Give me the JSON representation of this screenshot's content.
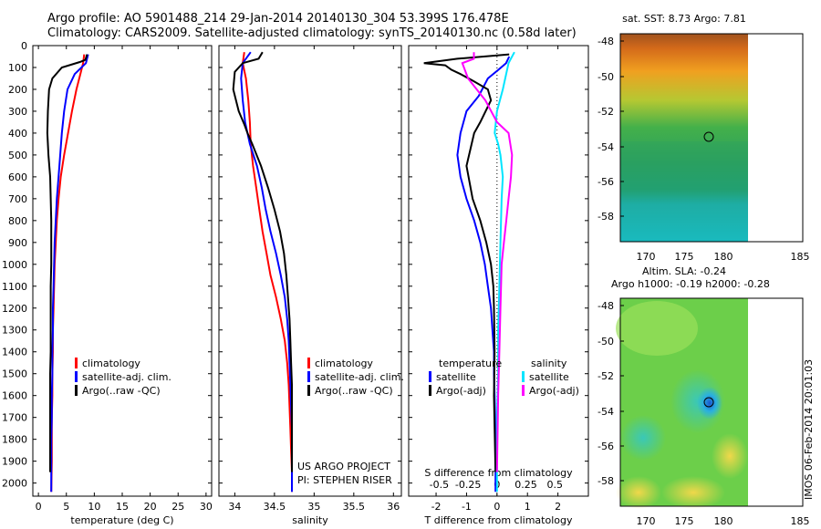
{
  "title_line1": "Argo profile: AO 5901488_214 29-Jan-2014 20140130_304 53.399S 176.478E",
  "title_line2": "Climatology: CARS2009. Satellite-adjusted climatology: synTS_20140130.nc (0.58d later)",
  "colors": {
    "climatology": "#ff0000",
    "satellite": "#0000ff",
    "argo": "#000000",
    "satellite_s": "#00e5ff",
    "argo_s": "#ff00ff"
  },
  "depth_axis": {
    "ticks": [
      "0",
      "100",
      "200",
      "300",
      "400",
      "500",
      "600",
      "700",
      "800",
      "900",
      "1000",
      "1100",
      "1200",
      "1300",
      "1400",
      "1500",
      "1600",
      "1700",
      "1800",
      "1900",
      "2000"
    ],
    "range": [
      0,
      2060
    ]
  },
  "panels": {
    "temperature": {
      "xlabel": "temperature (deg C)",
      "xticks": [
        "0",
        "5",
        "10",
        "15",
        "20",
        "25",
        "30"
      ],
      "legend": [
        "climatology",
        "satellite-adj. clim.",
        "Argo(..raw -QC)"
      ]
    },
    "salinity": {
      "xlabel": "salinity",
      "xticks": [
        "34",
        "34.5",
        "35",
        "35.5",
        "36"
      ],
      "legend": [
        "climatology",
        "satellite-adj. clim.",
        "Argo(..raw -QC)"
      ],
      "project_line1": "US ARGO PROJECT",
      "project_line2": "PI: STEPHEN RISER"
    },
    "difference": {
      "xlabel": "T difference from climatology",
      "top_label": "S difference from climatology",
      "top_ticks": [
        "-0.5",
        "-0.25",
        "0",
        "0.25",
        "0.5"
      ],
      "xticks": [
        "-2",
        "-1",
        "0",
        "1",
        "2"
      ],
      "legend_t_title": "temperature",
      "legend_s_title": "salinity",
      "legend_t": [
        "satellite",
        "Argo(-adj)"
      ],
      "legend_s": [
        "satellite",
        "Argo(-adj)"
      ]
    }
  },
  "maps": {
    "sst": {
      "title": "sat. SST: 8.73 Argo: 7.81",
      "xticks": [
        "170",
        "175",
        "180",
        "185"
      ],
      "yticks": [
        "-48",
        "-50",
        "-52",
        "-54",
        "-56",
        "-58"
      ]
    },
    "sla": {
      "title1": "Altim. SLA: -0.24",
      "title2": "Argo h1000: -0.19 h2000: -0.28",
      "xticks": [
        "170",
        "175",
        "180",
        "185"
      ],
      "yticks": [
        "-48",
        "-50",
        "-52",
        "-54",
        "-56",
        "-58"
      ]
    }
  },
  "stamp": "IMOS 06-Feb-2014 20:01:03",
  "chart_data": [
    {
      "type": "line",
      "name": "temperature",
      "xlim": [
        -1,
        31
      ],
      "ylim": [
        0,
        2060
      ],
      "series": [
        {
          "name": "climatology",
          "x": [
            8.2,
            8.0,
            7.5,
            6.8,
            6.0,
            5.3,
            4.6,
            4.0,
            3.6,
            3.3,
            3.1,
            2.9,
            2.8,
            2.7,
            2.6,
            2.6,
            2.5,
            2.5,
            2.4,
            2.4,
            2.4,
            2.3
          ],
          "y": [
            40,
            80,
            130,
            200,
            300,
            400,
            500,
            600,
            700,
            800,
            900,
            1000,
            1100,
            1200,
            1300,
            1400,
            1500,
            1600,
            1700,
            1800,
            1900,
            2040
          ]
        },
        {
          "name": "satellite-adj. clim.",
          "x": [
            8.9,
            8.5,
            6.5,
            5.2,
            4.6,
            4.2,
            3.9,
            3.6,
            3.3,
            3.1,
            2.9,
            2.8,
            2.7,
            2.6,
            2.6,
            2.5,
            2.5,
            2.4,
            2.4,
            2.3,
            2.3,
            2.3
          ],
          "y": [
            40,
            80,
            130,
            200,
            300,
            400,
            500,
            600,
            700,
            800,
            900,
            1000,
            1100,
            1200,
            1300,
            1400,
            1500,
            1600,
            1700,
            1800,
            1900,
            2040
          ]
        },
        {
          "name": "Argo(..raw -QC)",
          "x": [
            8.7,
            8.4,
            7.4,
            4.2,
            2.5,
            1.9,
            1.7,
            1.6,
            1.8,
            2.1,
            2.2,
            2.3,
            2.3,
            2.3,
            2.2,
            2.2,
            2.2,
            2.2,
            2.1,
            2.1,
            2.1,
            2.1
          ],
          "y": [
            40,
            65,
            75,
            100,
            150,
            200,
            300,
            400,
            500,
            600,
            700,
            800,
            900,
            1000,
            1100,
            1200,
            1300,
            1400,
            1500,
            1600,
            1700,
            1950
          ]
        }
      ]
    },
    {
      "type": "line",
      "name": "salinity",
      "xlim": [
        33.8,
        36.1
      ],
      "ylim": [
        0,
        2060
      ],
      "series": [
        {
          "name": "climatology",
          "x": [
            34.12,
            34.1,
            34.14,
            34.17,
            34.19,
            34.2,
            34.23,
            34.27,
            34.31,
            34.35,
            34.4,
            34.45,
            34.52,
            34.58,
            34.63,
            34.66,
            34.68,
            34.69,
            34.7,
            34.71,
            34.72,
            34.72
          ],
          "y": [
            30,
            80,
            150,
            250,
            350,
            450,
            550,
            650,
            750,
            850,
            950,
            1050,
            1150,
            1250,
            1350,
            1450,
            1550,
            1650,
            1750,
            1850,
            1950,
            2040
          ]
        },
        {
          "name": "satellite-adj. clim.",
          "x": [
            34.2,
            34.1,
            34.08,
            34.1,
            34.13,
            34.16,
            34.19,
            34.28,
            34.34,
            34.39,
            34.45,
            34.52,
            34.58,
            34.63,
            34.66,
            34.68,
            34.69,
            34.7,
            34.71,
            34.72,
            34.72
          ],
          "y": [
            30,
            80,
            150,
            250,
            350,
            400,
            450,
            550,
            650,
            750,
            850,
            950,
            1050,
            1150,
            1250,
            1350,
            1450,
            1550,
            1650,
            1750,
            2040
          ]
        },
        {
          "name": "Argo(..raw -QC)",
          "x": [
            34.35,
            34.3,
            34.1,
            34.0,
            33.98,
            34.05,
            34.12,
            34.16,
            34.22,
            34.33,
            34.42,
            34.5,
            34.57,
            34.62,
            34.65,
            34.67,
            34.69,
            34.7,
            34.71,
            34.72,
            34.72
          ],
          "y": [
            30,
            60,
            80,
            120,
            200,
            300,
            360,
            400,
            450,
            550,
            650,
            750,
            850,
            950,
            1050,
            1150,
            1250,
            1350,
            1450,
            1550,
            1950
          ]
        }
      ]
    },
    {
      "type": "line",
      "name": "difference",
      "xlim": [
        -2.9,
        3.0
      ],
      "ylim": [
        0,
        2060
      ],
      "series": [
        {
          "name": "temperature satellite",
          "x": [
            0.4,
            0.3,
            0.05,
            -0.3,
            -0.6,
            -1.0,
            -1.2,
            -1.3,
            -1.2,
            -1.0,
            -0.75,
            -0.55,
            -0.4,
            -0.3,
            -0.2,
            -0.15,
            -0.1,
            -0.1,
            -0.08,
            -0.06,
            -0.05,
            -0.05
          ],
          "y": [
            50,
            80,
            110,
            150,
            230,
            300,
            400,
            500,
            600,
            700,
            800,
            900,
            1000,
            1100,
            1200,
            1300,
            1400,
            1500,
            1600,
            1700,
            1800,
            2040
          ]
        },
        {
          "name": "temperature Argo(-adj)",
          "x": [
            0.4,
            -1.3,
            -2.4,
            -1.7,
            -1.5,
            -1.2,
            -0.8,
            -0.3,
            -0.2,
            -0.55,
            -0.75,
            -1.0,
            -0.8,
            -0.55,
            -0.35,
            -0.2,
            -0.12,
            -0.1,
            -0.08,
            -0.1,
            -0.05
          ],
          "y": [
            40,
            60,
            80,
            90,
            110,
            130,
            160,
            200,
            250,
            350,
            400,
            550,
            700,
            800,
            900,
            1000,
            1100,
            1200,
            1400,
            1600,
            1950
          ]
        },
        {
          "name": "salinity satellite",
          "x": [
            0.15,
            0.1,
            0.05,
            0.0,
            -0.02,
            0.01,
            0.03,
            0.05,
            0.04,
            0.03,
            0.02,
            0.01,
            0.01,
            0.0,
            0.0,
            0.0
          ],
          "y": [
            30,
            80,
            200,
            300,
            400,
            450,
            500,
            600,
            700,
            900,
            1100,
            1300,
            1500,
            1700,
            1900,
            2040
          ]
        },
        {
          "name": "salinity Argo(-adj)",
          "x": [
            -0.2,
            -0.2,
            -0.3,
            -0.25,
            -0.1,
            0.0,
            0.1,
            0.13,
            0.12,
            0.1,
            0.08,
            0.06,
            0.04,
            0.03,
            0.02,
            0.01,
            0.0
          ],
          "y": [
            30,
            60,
            80,
            150,
            250,
            350,
            400,
            500,
            600,
            700,
            800,
            900,
            1000,
            1200,
            1400,
            1600,
            1950
          ]
        }
      ]
    }
  ]
}
